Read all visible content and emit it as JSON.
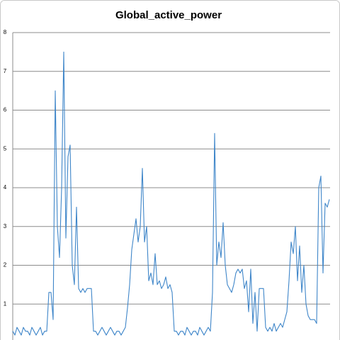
{
  "chart_data": {
    "type": "line",
    "title": "Global_active_power",
    "series": [
      {
        "name": "Global_active_power",
        "color": "#3f86c9",
        "values": [
          0.3,
          0.2,
          0.4,
          0.3,
          0.2,
          0.4,
          0.3,
          0.3,
          0.2,
          0.4,
          0.3,
          0.2,
          0.3,
          0.4,
          0.2,
          0.3,
          0.3,
          1.3,
          1.3,
          0.6,
          6.5,
          3.0,
          2.2,
          4.0,
          7.5,
          2.7,
          4.8,
          5.1,
          2.0,
          1.5,
          3.5,
          1.4,
          1.3,
          1.4,
          1.3,
          1.4,
          1.4,
          1.4,
          0.3,
          0.3,
          0.2,
          0.3,
          0.4,
          0.3,
          0.2,
          0.3,
          0.4,
          0.3,
          0.2,
          0.3,
          0.3,
          0.2,
          0.3,
          0.4,
          0.9,
          1.5,
          2.4,
          2.8,
          3.2,
          2.6,
          3.0,
          4.5,
          2.6,
          3.0,
          1.6,
          1.8,
          1.5,
          2.3,
          1.5,
          1.6,
          1.4,
          1.5,
          1.7,
          1.4,
          1.5,
          1.3,
          0.3,
          0.3,
          0.2,
          0.3,
          0.3,
          0.2,
          0.4,
          0.3,
          0.2,
          0.3,
          0.3,
          0.2,
          0.4,
          0.3,
          0.2,
          0.3,
          0.4,
          0.3,
          1.3,
          5.4,
          2.0,
          2.6,
          2.2,
          3.1,
          2.0,
          1.5,
          1.4,
          1.3,
          1.5,
          1.8,
          1.9,
          1.8,
          1.9,
          1.4,
          1.6,
          0.8,
          1.9,
          0.5,
          1.3,
          0.3,
          1.4,
          1.4,
          1.4,
          0.4,
          0.3,
          0.4,
          0.3,
          0.5,
          0.3,
          0.4,
          0.5,
          0.4,
          0.6,
          0.8,
          1.6,
          2.6,
          2.3,
          3.0,
          1.6,
          2.5,
          1.3,
          2.0,
          1.0,
          0.7,
          0.6,
          0.6,
          0.6,
          0.5,
          4.0,
          4.3,
          1.8,
          3.6,
          3.5,
          3.7
        ]
      }
    ],
    "ylim": [
      0,
      8
    ],
    "yticks": [
      1,
      2,
      3,
      4,
      5,
      6,
      7,
      8
    ],
    "grid": true
  }
}
